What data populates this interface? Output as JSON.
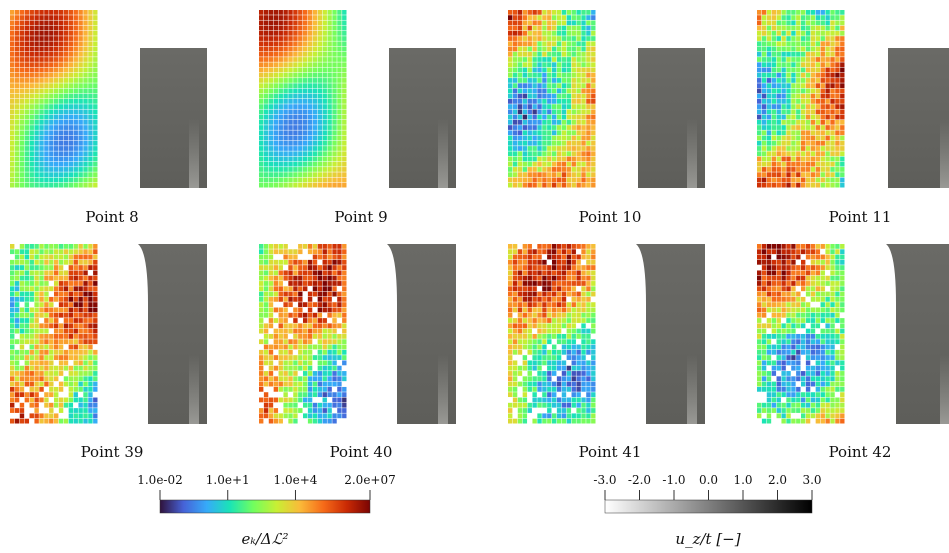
{
  "panels": [
    {
      "label": "Point 8"
    },
    {
      "label": "Point 9"
    },
    {
      "label": "Point 10"
    },
    {
      "label": "Point 11"
    },
    {
      "label": "Point 39"
    },
    {
      "label": "Point 40"
    },
    {
      "label": "Point 41"
    },
    {
      "label": "Point 42"
    }
  ],
  "colorbars": [
    {
      "label": "eₖ/Δℒ²",
      "scale": "log",
      "lim": [
        0.01,
        20000000
      ],
      "ticks": [
        {
          "value": 0.01,
          "label": "1.0e-02"
        },
        {
          "value": 10,
          "label": "1.0e+1"
        },
        {
          "value": 10000,
          "label": "1.0e+4"
        },
        {
          "value": 20000000,
          "label": "2.0e+07"
        }
      ],
      "colors": [
        "#30123b",
        "#4662d7",
        "#36aaf9",
        "#1ae4b6",
        "#72fe5e",
        "#c8ef34",
        "#faba39",
        "#f66b19",
        "#ca2a04",
        "#7a0403"
      ]
    },
    {
      "label": "u_z/t [−]",
      "scale": "linear",
      "lim": [
        -3,
        3
      ],
      "ticks": [
        {
          "value": -3,
          "label": "-3.0"
        },
        {
          "value": -2,
          "label": "-2.0"
        },
        {
          "value": -1,
          "label": "-1.0"
        },
        {
          "value": 0,
          "label": "0.0"
        },
        {
          "value": 1,
          "label": "1.0"
        },
        {
          "value": 2,
          "label": "2.0"
        },
        {
          "value": 3,
          "label": "3.0"
        }
      ],
      "colors": [
        "#ffffff",
        "#000000"
      ]
    }
  ]
}
